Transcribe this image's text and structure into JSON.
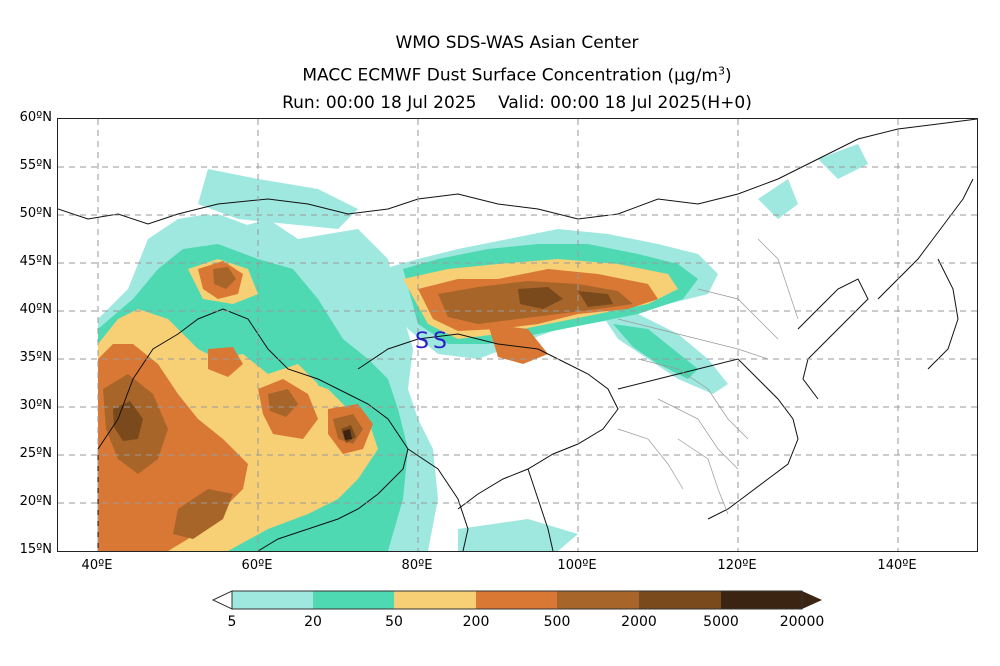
{
  "title": {
    "line1": "WMO SDS-WAS Asian Center",
    "line2": "MACC ECMWF Dust Surface Concentration",
    "line2_unit_base": "(μg/m",
    "line2_unit_exp": "3",
    "line2_unit_close": ")",
    "line3": "Run: 00:00 18 Jul 2025    Valid: 00:00 18 Jul 2025(H+0)"
  },
  "map": {
    "lat_labels": [
      "60ºN",
      "55ºN",
      "50ºN",
      "45ºN",
      "40ºN",
      "35ºN",
      "30ºN",
      "25ºN",
      "20ºN",
      "15ºN"
    ],
    "lon_labels": [
      "40ºE",
      "60ºE",
      "80ºE",
      "100ºE",
      "120ºE",
      "140ºE"
    ],
    "marker_symbols": [
      "S",
      "S"
    ],
    "marker_color": "#2b1ec9"
  },
  "colorbar": {
    "colors": [
      "#9ee8df",
      "#4fd9b3",
      "#f7cf74",
      "#d97834",
      "#a8652a",
      "#7a4a1c",
      "#3b2412"
    ],
    "labels": [
      "5",
      "20",
      "50",
      "200",
      "500",
      "2000",
      "5000",
      "20000"
    ]
  }
}
